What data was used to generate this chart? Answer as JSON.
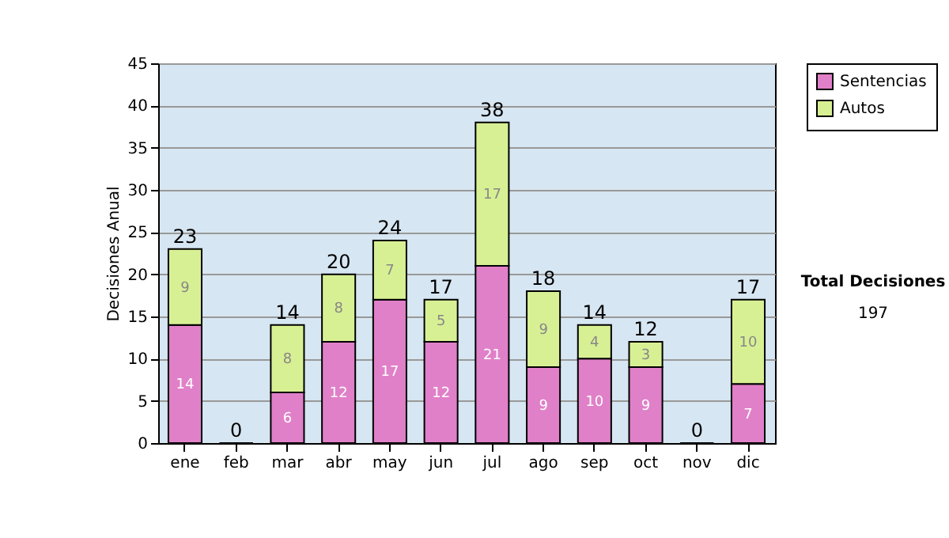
{
  "chart_data": {
    "type": "bar",
    "stacked": true,
    "ylabel": "Decisiones Anual",
    "categories": [
      "ene",
      "feb",
      "mar",
      "abr",
      "may",
      "jun",
      "jul",
      "ago",
      "sep",
      "oct",
      "nov",
      "dic"
    ],
    "series": [
      {
        "name": "Sentencias",
        "color": "#e080c8",
        "values": [
          14,
          0,
          6,
          12,
          17,
          12,
          21,
          9,
          10,
          9,
          0,
          7
        ],
        "value_labels": [
          "14",
          null,
          "6",
          "12",
          "17",
          "12",
          "21",
          "9",
          "10",
          "9",
          null,
          "7"
        ]
      },
      {
        "name": "Autos",
        "color": "#d8f094",
        "values": [
          9,
          0,
          8,
          8,
          7,
          5,
          17,
          9,
          4,
          3,
          0,
          10
        ],
        "value_labels": [
          "9",
          null,
          "8",
          "8",
          "7",
          "5",
          "17",
          "9",
          "4",
          "3",
          null,
          "10"
        ]
      }
    ],
    "totals": [
      "23",
      "0",
      "14",
      "20",
      "24",
      "17",
      "38",
      "18",
      "14",
      "12",
      "0",
      "17"
    ],
    "ylim": [
      0,
      45
    ],
    "yticks": [
      0,
      5,
      10,
      15,
      20,
      25,
      30,
      35,
      40,
      45
    ],
    "grid": "y",
    "legend": "right",
    "annotations": [
      "Total Decisiones",
      "197"
    ]
  }
}
